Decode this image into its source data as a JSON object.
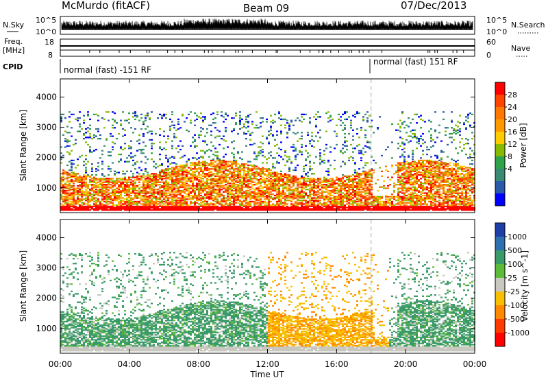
{
  "header": {
    "station": "McMurdo (fitACF)",
    "beam": "Beam 09",
    "date": "07/Dec/2013"
  },
  "noise_panel": {
    "left_label": "N.Sky",
    "right_label": "N.Search",
    "left_ticks": [
      "10^5",
      "10^0"
    ],
    "right_ticks": [
      "10^5",
      "10^0"
    ]
  },
  "freq_panel": {
    "left_label_line1": "Freq.",
    "left_label_line2": "[MHz]",
    "left_ticks": [
      "18",
      "8"
    ],
    "right_label": "Nave",
    "right_ticks": [
      "60",
      "0"
    ]
  },
  "cpid_panel": {
    "label": "CPID",
    "mode_1": "normal (fast) -151 RF",
    "mode_2": "normal (fast) 151 RF",
    "mode_switch_hour": 18
  },
  "chart_data": [
    {
      "type": "heatmap",
      "quantity": "Power",
      "ylabel": "Slant Range [km]",
      "xlabel": "",
      "xlim_hours": [
        0,
        24
      ],
      "ylim": [
        180,
        4600
      ],
      "y_ticks": [
        "1000",
        "2000",
        "3000",
        "4000"
      ],
      "x_ticks": [
        "00:00",
        "04:00",
        "08:00",
        "12:00",
        "16:00",
        "20:00",
        "00:00"
      ],
      "colorbar": {
        "label": "Power [dB]",
        "ticks": [
          "28",
          "24",
          "20",
          "16",
          "12",
          "8",
          "4"
        ],
        "colors": [
          "#ff0000",
          "#ff4400",
          "#ff7700",
          "#ff9900",
          "#ffcc00",
          "#88bb00",
          "#2ea34a",
          "#3b8a74",
          "#2b5aa8",
          "#0000ff"
        ]
      }
    },
    {
      "type": "heatmap",
      "quantity": "Velocity",
      "ylabel": "Slant Range [km]",
      "xlabel": "Time UT",
      "xlim_hours": [
        0,
        24
      ],
      "ylim": [
        180,
        4600
      ],
      "y_ticks": [
        "1000",
        "2000",
        "3000",
        "4000"
      ],
      "x_ticks": [
        "00:00",
        "04:00",
        "08:00",
        "12:00",
        "16:00",
        "20:00",
        "00:00"
      ],
      "colorbar": {
        "label": "Velocity [m s^-1]",
        "ticks": [
          "1000",
          "500",
          "100",
          "25",
          "-25",
          "-100",
          "-500",
          "-1000"
        ],
        "colors": [
          "#1f3fa8",
          "#2e6fb0",
          "#3a9a6a",
          "#5dbb3a",
          "#c8c8c0",
          "#f7c000",
          "#ff8a00",
          "#ff3a00",
          "#ff0000"
        ]
      }
    }
  ]
}
